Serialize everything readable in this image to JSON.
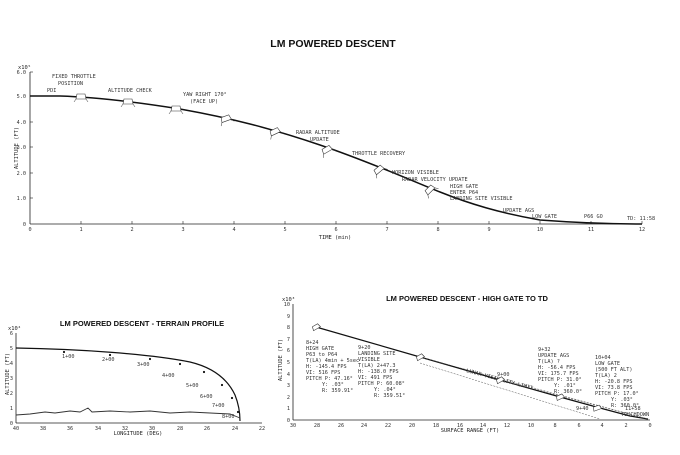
{
  "main": {
    "title": "LM POWERED DESCENT",
    "y_exp": "x10⁵",
    "y_label": "ALTITUDE (FT)",
    "x_label": "TIME (min)",
    "x_ticks": [
      "0",
      "1",
      "2",
      "3",
      "4",
      "5",
      "6",
      "7",
      "8",
      "9",
      "10",
      "11",
      "12"
    ],
    "y_ticks": [
      "0",
      "1.0",
      "2.0",
      "3.0",
      "4.0",
      "5.0",
      "6.0"
    ],
    "annotations": [
      {
        "t": "FIXED THROTTLE POSITION"
      },
      {
        "t": "PDI"
      },
      {
        "t": "ALTITUDE CHECK"
      },
      {
        "t": "YAW RIGHT 170° (FACE UP)"
      },
      {
        "t": "RADAR ALTITUDE UPDATE"
      },
      {
        "t": "THROTTLE RECOVERY"
      },
      {
        "t": "HORIZON VISIBLE"
      },
      {
        "t": "RADAR VELOCITY UPDATE"
      },
      {
        "t": "HIGH GATE ENTER P64 LANDING SITE VISIBLE"
      },
      {
        "t": "UPDATE AGS"
      },
      {
        "t": "LOW GATE"
      },
      {
        "t": "P66 GO"
      },
      {
        "t": "TD: 11:58"
      }
    ]
  },
  "terrain": {
    "title": "LM POWERED DESCENT - TERRAIN PROFILE",
    "y_exp": "x10⁴",
    "y_label": "ALTITUDE (FT)",
    "x_label": "LONGITUDE (DEG)",
    "x_ticks": [
      "40",
      "38",
      "36",
      "34",
      "32",
      "30",
      "28",
      "26",
      "24",
      "22"
    ],
    "y_ticks": [
      "0",
      "1",
      "2",
      "3",
      "4",
      "5",
      "6"
    ],
    "point_labels": [
      "1+00",
      "2+00",
      "3+00",
      "4+00",
      "5+00",
      "6+00",
      "7+00",
      "8+00"
    ]
  },
  "highgate": {
    "title": "LM POWERED DESCENT - HIGH GATE TO TD",
    "y_exp": "x10³",
    "y_label": "ALTITUDE (FT)",
    "x_label": "SURFACE RANGE (FT)",
    "x_ticks": [
      "30",
      "28",
      "26",
      "24",
      "22",
      "20",
      "18",
      "16",
      "14",
      "12",
      "10",
      "8",
      "6",
      "4",
      "2",
      "0"
    ],
    "y_ticks": [
      "0",
      "1",
      "2",
      "3",
      "4",
      "5",
      "6",
      "7",
      "8",
      "9",
      "10"
    ],
    "los_label": "LUNAR VISIBILITY LIMIT",
    "blocks": [
      {
        "lines": [
          "8+24",
          "HIGH GATE",
          "P63 to P64",
          "T(LA) 4min + 5sec",
          "H: -145.4 FPS",
          "VI: 516 FPS",
          "PITCH P: 47.16°",
          "Y: .03°",
          "R: 359.91°"
        ]
      },
      {
        "lines": [
          "9+20",
          "LANDING SITE",
          "VISIBLE",
          "T(LA) 2+47.3",
          "H: -138.0 FPS",
          "VI: 491 FPS",
          "PITCH P: 60.08°",
          "Y: .04°",
          "R: 359.51°"
        ]
      },
      {
        "lines": [
          "9+32",
          "UPDATE AGS",
          "T(LA) ?",
          "H: -56.4 FPS",
          "VI: 175.7 FPS",
          "PITCH P: 31.0°",
          "Y: .01°",
          "R: 360.0°"
        ]
      },
      {
        "lines": [
          "10+04",
          "LOW GATE",
          "(500 FT ALT)",
          "T(LA) 2",
          "H: -20.8 FPS",
          "VI: 73.8 FPS",
          "PITCH P: 17.0°",
          "Y: .03°",
          "R: 360.0°"
        ]
      }
    ],
    "point_labels": [
      "9+00",
      "9+40"
    ],
    "end_labels": [
      "11+58",
      "TOUCHDOWN"
    ]
  }
}
